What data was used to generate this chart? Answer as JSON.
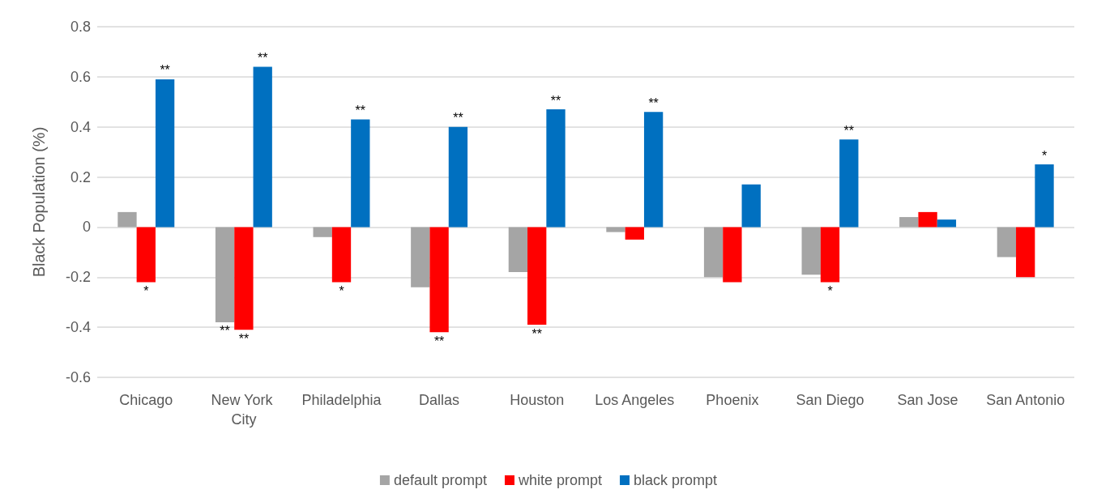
{
  "chart_data": {
    "type": "bar",
    "ylabel": "Black Population (%)",
    "categories": [
      "Chicago",
      "New York City",
      "Philadelphia",
      "Dallas",
      "Houston",
      "Los Angeles",
      "Phoenix",
      "San Diego",
      "San Jose",
      "San Antonio"
    ],
    "series": [
      {
        "name": "default prompt",
        "color": "#a5a5a5",
        "values": [
          0.06,
          -0.38,
          -0.04,
          -0.24,
          -0.18,
          -0.02,
          -0.2,
          -0.19,
          0.04,
          -0.12
        ],
        "value_labels": [
          null,
          "**",
          null,
          null,
          null,
          null,
          null,
          null,
          null,
          null
        ]
      },
      {
        "name": "white prompt",
        "color": "#ff0000",
        "values": [
          -0.22,
          -0.41,
          -0.22,
          -0.42,
          -0.39,
          -0.05,
          -0.22,
          -0.22,
          0.06,
          -0.2
        ],
        "value_labels": [
          "*",
          "**",
          "*",
          "**",
          "**",
          null,
          null,
          "*",
          null,
          null
        ]
      },
      {
        "name": "black prompt",
        "color": "#0070c0",
        "values": [
          0.59,
          0.64,
          0.43,
          0.4,
          0.47,
          0.46,
          0.17,
          0.35,
          0.03,
          0.25
        ],
        "value_labels": [
          "**",
          "**",
          "**",
          "**",
          "**",
          "**",
          null,
          "**",
          null,
          "*"
        ]
      }
    ],
    "ylim": [
      -0.6,
      0.8
    ],
    "yticks": [
      -0.6,
      -0.4,
      -0.2,
      0,
      0.2,
      0.4,
      0.6,
      0.8
    ],
    "grid": "y",
    "legend": "bottom"
  }
}
